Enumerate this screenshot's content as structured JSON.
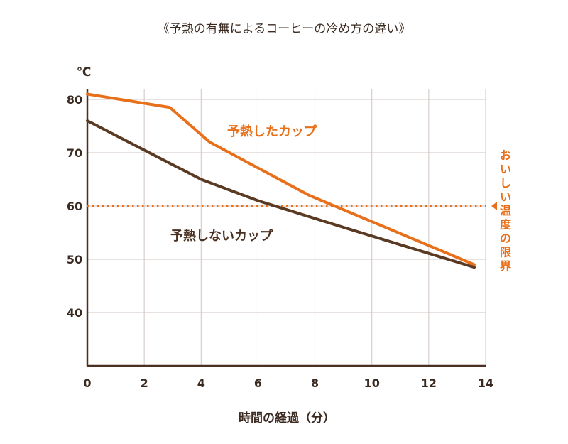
{
  "chart_data": {
    "type": "line",
    "title": "《予熱の有無によるコーヒーの冷め方の違い》",
    "xlabel": "時間の経過（分）",
    "ylabel": "℃",
    "xlim": [
      0,
      14
    ],
    "ylim": [
      30,
      82
    ],
    "x_ticks": [
      0,
      2,
      4,
      6,
      8,
      10,
      12,
      14
    ],
    "y_ticks": [
      40,
      50,
      60,
      70,
      80
    ],
    "grid": true,
    "series": [
      {
        "name": "予熱したカップ",
        "color": "#e8701a",
        "points": [
          [
            0,
            81
          ],
          [
            2.9,
            78.5
          ],
          [
            4.3,
            72
          ],
          [
            7.8,
            62
          ],
          [
            13.6,
            49
          ]
        ]
      },
      {
        "name": "予熱しないカップ",
        "color": "#5a3a22",
        "points": [
          [
            0,
            76
          ],
          [
            4,
            65
          ],
          [
            6,
            61
          ],
          [
            9,
            56
          ],
          [
            13.6,
            48.5
          ]
        ]
      }
    ],
    "reference_line": {
      "y": 60,
      "label": "おいしい温度の限界",
      "color": "#e8701a",
      "style": "dotted"
    }
  }
}
